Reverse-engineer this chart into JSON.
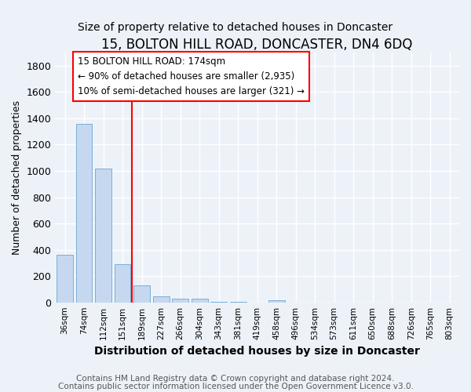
{
  "title": "15, BOLTON HILL ROAD, DONCASTER, DN4 6DQ",
  "subtitle": "Size of property relative to detached houses in Doncaster",
  "xlabel": "Distribution of detached houses by size in Doncaster",
  "ylabel": "Number of detached properties",
  "footnote1": "Contains HM Land Registry data © Crown copyright and database right 2024.",
  "footnote2": "Contains public sector information licensed under the Open Government Licence v3.0.",
  "categories": [
    "36sqm",
    "74sqm",
    "112sqm",
    "151sqm",
    "189sqm",
    "227sqm",
    "266sqm",
    "304sqm",
    "343sqm",
    "381sqm",
    "419sqm",
    "458sqm",
    "496sqm",
    "534sqm",
    "573sqm",
    "611sqm",
    "650sqm",
    "688sqm",
    "726sqm",
    "765sqm",
    "803sqm"
  ],
  "values": [
    360,
    1360,
    1020,
    290,
    130,
    45,
    30,
    30,
    5,
    5,
    0,
    15,
    0,
    0,
    0,
    0,
    0,
    0,
    0,
    0,
    0
  ],
  "bar_color": "#c5d8f0",
  "bar_edge_color": "#7aaed6",
  "red_line_x": 4.0,
  "annotation_line1": "15 BOLTON HILL ROAD: 174sqm",
  "annotation_line2": "← 90% of detached houses are smaller (2,935)",
  "annotation_line3": "10% of semi-detached houses are larger (321) →",
  "ylim": [
    0,
    1900
  ],
  "yticks": [
    0,
    200,
    400,
    600,
    800,
    1000,
    1200,
    1400,
    1600,
    1800
  ],
  "background_color": "#edf2f9",
  "plot_bg_color": "#edf2f9",
  "grid_color": "#ffffff",
  "title_fontsize": 12,
  "subtitle_fontsize": 10,
  "footnote_color": "#555555",
  "footnote_fontsize": 7.5
}
